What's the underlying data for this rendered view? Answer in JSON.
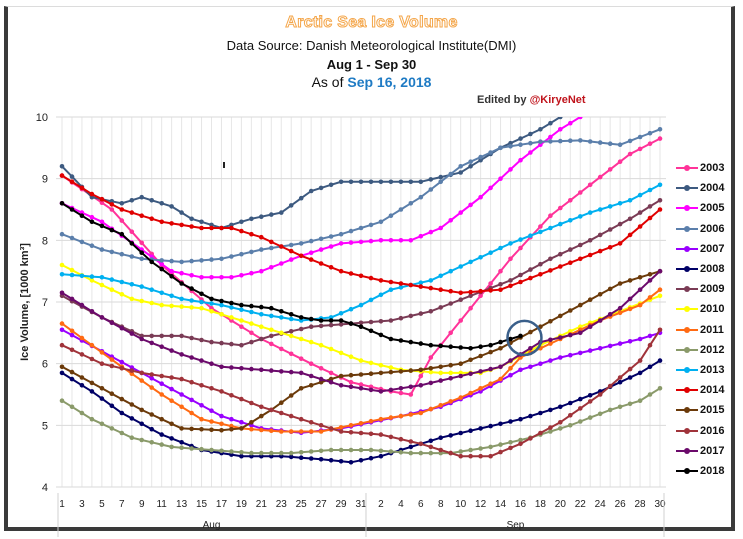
{
  "chart_data": {
    "type": "line",
    "title": "Arctic Sea Ice Volume",
    "subtitle": "Data Source: Danish Meteorological Institute(DMI)",
    "date_range": "Aug 1 - Sep 30",
    "as_of_prefix": "As of",
    "as_of_date": "Sep 16, 2018",
    "credit_prefix": "Edited by",
    "credit_handle": "@KiryeNet",
    "ylabel": "Ice Volume, [1000 km³]",
    "xlabel": "",
    "ylim": [
      4,
      10
    ],
    "yticks": [
      4,
      5,
      6,
      7,
      8,
      9,
      10
    ],
    "x_groups": [
      {
        "label": "Aug",
        "days": 31,
        "tick_labels": [
          "1",
          "3",
          "5",
          "7",
          "9",
          "11",
          "13",
          "15",
          "17",
          "19",
          "21",
          "23",
          "25",
          "27",
          "29",
          "31"
        ]
      },
      {
        "label": "Sep",
        "days": 30,
        "tick_labels": [
          "2",
          "4",
          "6",
          "8",
          "10",
          "12",
          "14",
          "16",
          "18",
          "20",
          "22",
          "24",
          "26",
          "28",
          "30"
        ]
      }
    ],
    "grid": true,
    "legend_position": "right",
    "annotation": {
      "type": "circle",
      "target_series": "2018",
      "day_index": 46,
      "color": "#3a5f8a"
    },
    "series": [
      {
        "name": "2003",
        "color": "#ff3399",
        "keypoints": [
          [
            0,
            9.05
          ],
          [
            5,
            8.5
          ],
          [
            10,
            7.6
          ],
          [
            15,
            6.9
          ],
          [
            20,
            6.4
          ],
          [
            25,
            6.0
          ],
          [
            29,
            5.7
          ],
          [
            33,
            5.55
          ],
          [
            35,
            5.5
          ],
          [
            37,
            6.1
          ],
          [
            41,
            6.9
          ],
          [
            45,
            7.7
          ],
          [
            49,
            8.4
          ],
          [
            53,
            8.9
          ],
          [
            57,
            9.4
          ],
          [
            60,
            9.65
          ]
        ]
      },
      {
        "name": "2004",
        "color": "#3d5a80",
        "keypoints": [
          [
            0,
            9.2
          ],
          [
            3,
            8.7
          ],
          [
            6,
            8.6
          ],
          [
            8,
            8.7
          ],
          [
            11,
            8.55
          ],
          [
            13,
            8.35
          ],
          [
            16,
            8.2
          ],
          [
            19,
            8.35
          ],
          [
            22,
            8.45
          ],
          [
            25,
            8.8
          ],
          [
            28,
            8.95
          ],
          [
            32,
            8.95
          ],
          [
            36,
            8.95
          ],
          [
            40,
            9.1
          ],
          [
            44,
            9.5
          ],
          [
            48,
            9.8
          ],
          [
            50,
            10.0
          ]
        ]
      },
      {
        "name": "2005",
        "color": "#ff00ff",
        "keypoints": [
          [
            0,
            8.6
          ],
          [
            4,
            8.3
          ],
          [
            8,
            7.85
          ],
          [
            11,
            7.5
          ],
          [
            14,
            7.4
          ],
          [
            17,
            7.4
          ],
          [
            20,
            7.5
          ],
          [
            24,
            7.75
          ],
          [
            28,
            7.95
          ],
          [
            32,
            8.0
          ],
          [
            35,
            8.0
          ],
          [
            38,
            8.2
          ],
          [
            42,
            8.7
          ],
          [
            46,
            9.3
          ],
          [
            50,
            9.8
          ],
          [
            52,
            10.0
          ]
        ]
      },
      {
        "name": "2006",
        "color": "#5b7fab",
        "keypoints": [
          [
            0,
            8.1
          ],
          [
            4,
            7.85
          ],
          [
            8,
            7.7
          ],
          [
            12,
            7.65
          ],
          [
            16,
            7.7
          ],
          [
            20,
            7.85
          ],
          [
            24,
            7.95
          ],
          [
            28,
            8.1
          ],
          [
            32,
            8.3
          ],
          [
            36,
            8.7
          ],
          [
            40,
            9.2
          ],
          [
            44,
            9.5
          ],
          [
            48,
            9.6
          ],
          [
            52,
            9.62
          ],
          [
            56,
            9.55
          ],
          [
            60,
            9.8
          ]
        ]
      },
      {
        "name": "2007",
        "color": "#9900ff",
        "keypoints": [
          [
            0,
            6.55
          ],
          [
            4,
            6.2
          ],
          [
            8,
            5.85
          ],
          [
            12,
            5.5
          ],
          [
            16,
            5.15
          ],
          [
            20,
            4.95
          ],
          [
            24,
            4.88
          ],
          [
            28,
            4.95
          ],
          [
            31,
            5.05
          ],
          [
            34,
            5.15
          ],
          [
            38,
            5.3
          ],
          [
            42,
            5.55
          ],
          [
            46,
            5.9
          ],
          [
            50,
            6.1
          ],
          [
            54,
            6.25
          ],
          [
            58,
            6.4
          ],
          [
            60,
            6.5
          ]
        ]
      },
      {
        "name": "2008",
        "color": "#000066",
        "keypoints": [
          [
            0,
            5.85
          ],
          [
            3,
            5.55
          ],
          [
            6,
            5.2
          ],
          [
            10,
            4.85
          ],
          [
            14,
            4.6
          ],
          [
            18,
            4.5
          ],
          [
            22,
            4.5
          ],
          [
            26,
            4.45
          ],
          [
            29,
            4.4
          ],
          [
            32,
            4.5
          ],
          [
            35,
            4.65
          ],
          [
            38,
            4.8
          ],
          [
            42,
            4.95
          ],
          [
            46,
            5.1
          ],
          [
            50,
            5.3
          ],
          [
            54,
            5.55
          ],
          [
            58,
            5.85
          ],
          [
            60,
            6.05
          ]
        ]
      },
      {
        "name": "2009",
        "color": "#7a3b55",
        "keypoints": [
          [
            0,
            7.1
          ],
          [
            4,
            6.75
          ],
          [
            8,
            6.45
          ],
          [
            12,
            6.45
          ],
          [
            15,
            6.35
          ],
          [
            18,
            6.3
          ],
          [
            21,
            6.45
          ],
          [
            25,
            6.6
          ],
          [
            29,
            6.65
          ],
          [
            33,
            6.7
          ],
          [
            37,
            6.85
          ],
          [
            41,
            7.1
          ],
          [
            45,
            7.35
          ],
          [
            49,
            7.7
          ],
          [
            53,
            8.0
          ],
          [
            57,
            8.35
          ],
          [
            60,
            8.65
          ]
        ]
      },
      {
        "name": "2010",
        "color": "#ffff00",
        "keypoints": [
          [
            0,
            7.6
          ],
          [
            3,
            7.35
          ],
          [
            7,
            7.05
          ],
          [
            10,
            6.95
          ],
          [
            14,
            6.9
          ],
          [
            18,
            6.7
          ],
          [
            22,
            6.5
          ],
          [
            26,
            6.3
          ],
          [
            30,
            6.05
          ],
          [
            34,
            5.9
          ],
          [
            38,
            5.85
          ],
          [
            42,
            5.85
          ],
          [
            44,
            5.95
          ],
          [
            48,
            6.3
          ],
          [
            52,
            6.6
          ],
          [
            56,
            6.85
          ],
          [
            60,
            7.1
          ]
        ]
      },
      {
        "name": "2011",
        "color": "#ff6a13",
        "keypoints": [
          [
            0,
            6.65
          ],
          [
            3,
            6.3
          ],
          [
            6,
            5.95
          ],
          [
            10,
            5.5
          ],
          [
            14,
            5.1
          ],
          [
            18,
            4.95
          ],
          [
            22,
            4.9
          ],
          [
            26,
            4.9
          ],
          [
            29,
            5.0
          ],
          [
            32,
            5.1
          ],
          [
            36,
            5.2
          ],
          [
            40,
            5.45
          ],
          [
            44,
            5.75
          ],
          [
            46,
            6.1
          ],
          [
            50,
            6.4
          ],
          [
            54,
            6.7
          ],
          [
            58,
            6.95
          ],
          [
            60,
            7.2
          ]
        ]
      },
      {
        "name": "2012",
        "color": "#8a9a6a",
        "keypoints": [
          [
            0,
            5.4
          ],
          [
            3,
            5.1
          ],
          [
            7,
            4.8
          ],
          [
            11,
            4.65
          ],
          [
            15,
            4.6
          ],
          [
            19,
            4.55
          ],
          [
            23,
            4.55
          ],
          [
            27,
            4.6
          ],
          [
            31,
            4.6
          ],
          [
            35,
            4.55
          ],
          [
            39,
            4.55
          ],
          [
            43,
            4.65
          ],
          [
            47,
            4.8
          ],
          [
            51,
            5.0
          ],
          [
            55,
            5.25
          ],
          [
            58,
            5.4
          ],
          [
            60,
            5.6
          ]
        ]
      },
      {
        "name": "2013",
        "color": "#00b0f0",
        "keypoints": [
          [
            0,
            7.45
          ],
          [
            4,
            7.4
          ],
          [
            8,
            7.25
          ],
          [
            12,
            7.05
          ],
          [
            16,
            6.95
          ],
          [
            20,
            6.8
          ],
          [
            24,
            6.7
          ],
          [
            27,
            6.75
          ],
          [
            30,
            6.95
          ],
          [
            33,
            7.2
          ],
          [
            37,
            7.35
          ],
          [
            41,
            7.65
          ],
          [
            45,
            7.95
          ],
          [
            49,
            8.2
          ],
          [
            53,
            8.45
          ],
          [
            57,
            8.65
          ],
          [
            60,
            8.9
          ]
        ]
      },
      {
        "name": "2014",
        "color": "#e00000",
        "keypoints": [
          [
            0,
            9.05
          ],
          [
            3,
            8.75
          ],
          [
            6,
            8.5
          ],
          [
            10,
            8.3
          ],
          [
            14,
            8.2
          ],
          [
            17,
            8.2
          ],
          [
            20,
            8.05
          ],
          [
            24,
            7.75
          ],
          [
            28,
            7.5
          ],
          [
            32,
            7.35
          ],
          [
            36,
            7.25
          ],
          [
            40,
            7.15
          ],
          [
            44,
            7.2
          ],
          [
            48,
            7.45
          ],
          [
            52,
            7.7
          ],
          [
            56,
            7.95
          ],
          [
            60,
            8.5
          ]
        ]
      },
      {
        "name": "2015",
        "color": "#6b3a0a",
        "keypoints": [
          [
            0,
            5.95
          ],
          [
            4,
            5.6
          ],
          [
            8,
            5.25
          ],
          [
            12,
            4.95
          ],
          [
            16,
            4.92
          ],
          [
            18,
            4.95
          ],
          [
            21,
            5.25
          ],
          [
            24,
            5.6
          ],
          [
            28,
            5.8
          ],
          [
            32,
            5.85
          ],
          [
            36,
            5.9
          ],
          [
            40,
            6.0
          ],
          [
            44,
            6.25
          ],
          [
            48,
            6.6
          ],
          [
            52,
            6.95
          ],
          [
            56,
            7.3
          ],
          [
            60,
            7.5
          ]
        ]
      },
      {
        "name": "2016",
        "color": "#a0333a",
        "keypoints": [
          [
            0,
            6.3
          ],
          [
            4,
            6.0
          ],
          [
            8,
            5.85
          ],
          [
            12,
            5.75
          ],
          [
            16,
            5.55
          ],
          [
            20,
            5.3
          ],
          [
            24,
            5.1
          ],
          [
            28,
            4.9
          ],
          [
            32,
            4.85
          ],
          [
            36,
            4.7
          ],
          [
            40,
            4.5
          ],
          [
            43,
            4.5
          ],
          [
            46,
            4.7
          ],
          [
            50,
            5.05
          ],
          [
            54,
            5.5
          ],
          [
            58,
            6.05
          ],
          [
            60,
            6.55
          ]
        ]
      },
      {
        "name": "2017",
        "color": "#6b0a6b",
        "keypoints": [
          [
            0,
            7.15
          ],
          [
            4,
            6.75
          ],
          [
            8,
            6.4
          ],
          [
            12,
            6.15
          ],
          [
            16,
            5.95
          ],
          [
            20,
            5.9
          ],
          [
            24,
            5.85
          ],
          [
            28,
            5.65
          ],
          [
            32,
            5.55
          ],
          [
            36,
            5.65
          ],
          [
            40,
            5.8
          ],
          [
            44,
            5.95
          ],
          [
            48,
            6.35
          ],
          [
            52,
            6.5
          ],
          [
            56,
            6.9
          ],
          [
            60,
            7.5
          ]
        ]
      },
      {
        "name": "2018",
        "color": "#000000",
        "keypoints": [
          [
            0,
            8.6
          ],
          [
            3,
            8.3
          ],
          [
            6,
            8.1
          ],
          [
            9,
            7.65
          ],
          [
            12,
            7.3
          ],
          [
            15,
            7.05
          ],
          [
            18,
            6.95
          ],
          [
            21,
            6.9
          ],
          [
            24,
            6.75
          ],
          [
            26,
            6.7
          ],
          [
            28,
            6.7
          ],
          [
            30,
            6.6
          ],
          [
            33,
            6.4
          ],
          [
            37,
            6.3
          ],
          [
            41,
            6.25
          ],
          [
            43,
            6.3
          ],
          [
            45,
            6.4
          ],
          [
            46,
            6.45
          ]
        ]
      }
    ]
  }
}
